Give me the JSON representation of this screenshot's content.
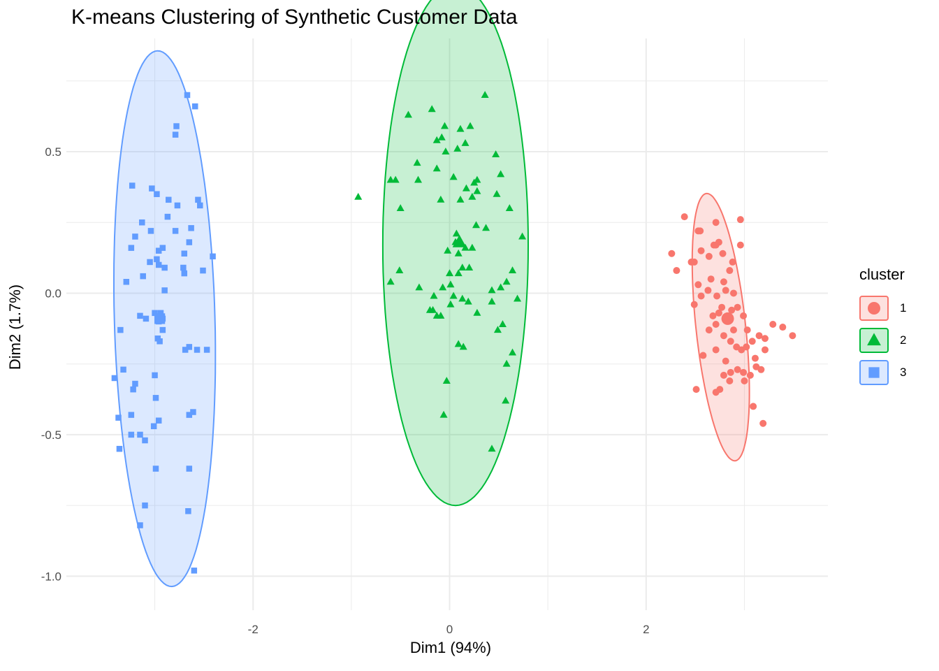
{
  "chart_data": {
    "type": "scatter",
    "title": "K-means Clustering of Synthetic Customer Data",
    "xlabel": "Dim1 (94%)",
    "ylabel": "Dim2 (1.7%)",
    "xlim": [
      -3.9,
      3.85
    ],
    "ylim": [
      -1.12,
      0.9
    ],
    "x_ticks": [
      -2,
      0,
      2
    ],
    "x_tick_labels": [
      "-2",
      "0",
      "2"
    ],
    "y_ticks": [
      -1.0,
      -0.5,
      0.0,
      0.5
    ],
    "y_tick_labels": [
      "-1.0",
      "-0.5",
      "0.0",
      "0.5"
    ],
    "grid": true,
    "legend": {
      "title": "cluster",
      "position": "right"
    },
    "series": [
      {
        "name": "1",
        "marker": "circle",
        "color": "#F8766D",
        "centroid": [
          2.83,
          -0.09
        ],
        "ellipse": {
          "center": [
            2.76,
            -0.12
          ],
          "semi_major": 0.5,
          "semi_minor": 0.24,
          "angle_deg": -68
        },
        "points": [
          [
            2.26,
            0.14
          ],
          [
            2.39,
            0.27
          ],
          [
            2.31,
            0.08
          ],
          [
            2.46,
            0.11
          ],
          [
            2.49,
            0.11
          ],
          [
            2.53,
            0.22
          ],
          [
            2.56,
            0.15
          ],
          [
            2.64,
            0.13
          ],
          [
            2.69,
            0.17
          ],
          [
            2.71,
            0.17
          ],
          [
            2.74,
            0.18
          ],
          [
            2.78,
            0.14
          ],
          [
            2.88,
            0.11
          ],
          [
            2.96,
            0.17
          ],
          [
            2.66,
            0.05
          ],
          [
            2.79,
            0.04
          ],
          [
            2.85,
            0.08
          ],
          [
            2.53,
            0.03
          ],
          [
            2.49,
            -0.04
          ],
          [
            2.56,
            -0.01
          ],
          [
            2.63,
            0.01
          ],
          [
            2.72,
            -0.01
          ],
          [
            2.81,
            0.01
          ],
          [
            2.89,
            0.0
          ],
          [
            2.77,
            -0.05
          ],
          [
            2.68,
            -0.08
          ],
          [
            2.74,
            -0.07
          ],
          [
            2.87,
            -0.06
          ],
          [
            2.93,
            -0.05
          ],
          [
            2.99,
            -0.08
          ],
          [
            2.89,
            -0.13
          ],
          [
            2.71,
            -0.11
          ],
          [
            2.64,
            -0.13
          ],
          [
            2.79,
            -0.15
          ],
          [
            2.86,
            -0.17
          ],
          [
            2.92,
            -0.19
          ],
          [
            3.03,
            -0.13
          ],
          [
            3.08,
            -0.17
          ],
          [
            2.97,
            -0.2
          ],
          [
            3.02,
            -0.19
          ],
          [
            3.11,
            -0.23
          ],
          [
            3.15,
            -0.15
          ],
          [
            3.21,
            -0.16
          ],
          [
            3.29,
            -0.11
          ],
          [
            3.39,
            -0.12
          ],
          [
            3.49,
            -0.15
          ],
          [
            2.58,
            -0.22
          ],
          [
            2.71,
            -0.2
          ],
          [
            2.81,
            -0.24
          ],
          [
            2.86,
            -0.28
          ],
          [
            2.93,
            -0.27
          ],
          [
            2.99,
            -0.28
          ],
          [
            3.0,
            -0.31
          ],
          [
            3.06,
            -0.29
          ],
          [
            3.12,
            -0.26
          ],
          [
            3.17,
            -0.27
          ],
          [
            3.21,
            -0.2
          ],
          [
            2.79,
            -0.29
          ],
          [
            2.85,
            -0.31
          ],
          [
            2.75,
            -0.34
          ],
          [
            2.71,
            -0.35
          ],
          [
            2.51,
            -0.34
          ],
          [
            3.09,
            -0.4
          ],
          [
            3.19,
            -0.46
          ],
          [
            2.96,
            0.26
          ],
          [
            2.71,
            0.25
          ],
          [
            2.55,
            0.22
          ]
        ]
      },
      {
        "name": "2",
        "marker": "triangle",
        "color": "#00BA38",
        "centroid": [
          0.1,
          0.18
        ],
        "ellipse": {
          "center": [
            0.06,
            0.17
          ],
          "semi_major": 0.74,
          "semi_minor": 0.92,
          "angle_deg": 0
        },
        "points": [
          [
            -0.93,
            0.34
          ],
          [
            -0.42,
            0.63
          ],
          [
            -0.18,
            0.65
          ],
          [
            0.36,
            0.7
          ],
          [
            -0.05,
            0.59
          ],
          [
            0.11,
            0.58
          ],
          [
            0.21,
            0.59
          ],
          [
            -0.08,
            0.55
          ],
          [
            -0.13,
            0.54
          ],
          [
            0.08,
            0.51
          ],
          [
            0.16,
            0.53
          ],
          [
            -0.04,
            0.5
          ],
          [
            0.47,
            0.49
          ],
          [
            -0.33,
            0.46
          ],
          [
            -0.13,
            0.44
          ],
          [
            0.52,
            0.42
          ],
          [
            -0.6,
            0.4
          ],
          [
            -0.55,
            0.4
          ],
          [
            -0.32,
            0.4
          ],
          [
            0.04,
            0.41
          ],
          [
            0.28,
            0.4
          ],
          [
            0.25,
            0.39
          ],
          [
            0.17,
            0.37
          ],
          [
            0.28,
            0.36
          ],
          [
            0.48,
            0.35
          ],
          [
            0.23,
            0.34
          ],
          [
            0.11,
            0.33
          ],
          [
            -0.09,
            0.33
          ],
          [
            -0.5,
            0.3
          ],
          [
            0.61,
            0.3
          ],
          [
            0.27,
            0.24
          ],
          [
            0.37,
            0.23
          ],
          [
            0.07,
            0.21
          ],
          [
            0.06,
            0.18
          ],
          [
            0.11,
            0.18
          ],
          [
            0.16,
            0.16
          ],
          [
            0.23,
            0.16
          ],
          [
            -0.02,
            0.15
          ],
          [
            0.09,
            0.14
          ],
          [
            0.74,
            0.2
          ],
          [
            -0.51,
            0.08
          ],
          [
            0.0,
            0.07
          ],
          [
            0.13,
            0.09
          ],
          [
            0.2,
            0.09
          ],
          [
            0.09,
            0.07
          ],
          [
            0.64,
            0.08
          ],
          [
            -0.6,
            0.04
          ],
          [
            -0.31,
            0.02
          ],
          [
            -0.07,
            0.02
          ],
          [
            0.01,
            0.03
          ],
          [
            0.58,
            0.04
          ],
          [
            0.52,
            0.02
          ],
          [
            0.43,
            0.01
          ],
          [
            -0.16,
            -0.01
          ],
          [
            0.04,
            -0.01
          ],
          [
            0.13,
            -0.02
          ],
          [
            0.19,
            -0.03
          ],
          [
            0.43,
            -0.03
          ],
          [
            0.69,
            -0.02
          ],
          [
            -0.17,
            -0.06
          ],
          [
            -0.2,
            -0.06
          ],
          [
            0.01,
            -0.04
          ],
          [
            0.28,
            -0.07
          ],
          [
            -0.13,
            -0.08
          ],
          [
            -0.09,
            -0.08
          ],
          [
            0.54,
            -0.11
          ],
          [
            0.49,
            -0.13
          ],
          [
            0.09,
            -0.18
          ],
          [
            0.14,
            -0.19
          ],
          [
            0.64,
            -0.21
          ],
          [
            0.58,
            -0.25
          ],
          [
            -0.03,
            -0.31
          ],
          [
            0.57,
            -0.38
          ],
          [
            -0.06,
            -0.43
          ],
          [
            0.43,
            -0.55
          ]
        ]
      },
      {
        "name": "3",
        "marker": "square",
        "color": "#619CFF",
        "centroid": [
          -2.95,
          -0.09
        ],
        "ellipse": {
          "center": [
            -2.9,
            -0.09
          ],
          "semi_major": 0.51,
          "semi_minor": 0.95,
          "angle_deg": 6
        },
        "points": [
          [
            -2.67,
            0.7
          ],
          [
            -2.59,
            0.66
          ],
          [
            -2.78,
            0.59
          ],
          [
            -2.79,
            0.56
          ],
          [
            -3.23,
            0.38
          ],
          [
            -3.03,
            0.37
          ],
          [
            -2.98,
            0.35
          ],
          [
            -2.86,
            0.33
          ],
          [
            -2.77,
            0.31
          ],
          [
            -2.56,
            0.33
          ],
          [
            -2.54,
            0.31
          ],
          [
            -2.87,
            0.27
          ],
          [
            -3.13,
            0.25
          ],
          [
            -2.63,
            0.23
          ],
          [
            -3.04,
            0.22
          ],
          [
            -2.79,
            0.22
          ],
          [
            -3.2,
            0.2
          ],
          [
            -2.65,
            0.18
          ],
          [
            -3.24,
            0.16
          ],
          [
            -2.92,
            0.16
          ],
          [
            -2.96,
            0.15
          ],
          [
            -2.7,
            0.14
          ],
          [
            -2.41,
            0.13
          ],
          [
            -2.51,
            0.08
          ],
          [
            -2.7,
            0.07
          ],
          [
            -2.98,
            0.12
          ],
          [
            -3.05,
            0.11
          ],
          [
            -2.96,
            0.1
          ],
          [
            -2.9,
            0.09
          ],
          [
            -2.71,
            0.09
          ],
          [
            -3.29,
            0.04
          ],
          [
            -3.12,
            0.06
          ],
          [
            -2.9,
            0.01
          ],
          [
            -3.15,
            -0.08
          ],
          [
            -3.09,
            -0.09
          ],
          [
            -3.0,
            -0.07
          ],
          [
            -2.94,
            -0.07
          ],
          [
            -2.92,
            -0.09
          ],
          [
            -2.96,
            -0.1
          ],
          [
            -2.92,
            -0.13
          ],
          [
            -3.35,
            -0.13
          ],
          [
            -2.97,
            -0.16
          ],
          [
            -2.65,
            -0.19
          ],
          [
            -2.69,
            -0.2
          ],
          [
            -2.57,
            -0.2
          ],
          [
            -2.47,
            -0.2
          ],
          [
            -2.95,
            -0.17
          ],
          [
            -3.32,
            -0.27
          ],
          [
            -3.0,
            -0.29
          ],
          [
            -3.41,
            -0.3
          ],
          [
            -3.2,
            -0.32
          ],
          [
            -3.22,
            -0.34
          ],
          [
            -2.99,
            -0.37
          ],
          [
            -3.24,
            -0.43
          ],
          [
            -2.96,
            -0.45
          ],
          [
            -2.65,
            -0.43
          ],
          [
            -2.61,
            -0.42
          ],
          [
            -3.37,
            -0.44
          ],
          [
            -3.01,
            -0.47
          ],
          [
            -3.24,
            -0.5
          ],
          [
            -3.1,
            -0.52
          ],
          [
            -3.15,
            -0.5
          ],
          [
            -3.36,
            -0.55
          ],
          [
            -2.99,
            -0.62
          ],
          [
            -2.65,
            -0.62
          ],
          [
            -3.1,
            -0.75
          ],
          [
            -2.66,
            -0.77
          ],
          [
            -3.15,
            -0.82
          ],
          [
            -2.6,
            -0.98
          ]
        ]
      }
    ]
  }
}
